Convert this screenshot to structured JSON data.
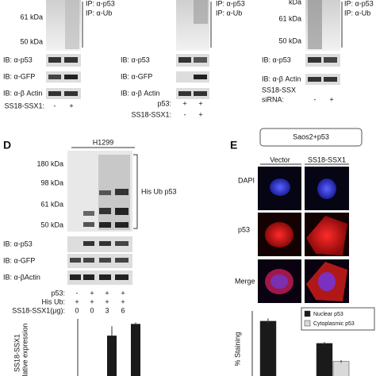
{
  "panel_a": {
    "ip_labels": [
      "IP: α-p53",
      "IP: α-Ub"
    ],
    "mw": [
      "61 kDa",
      "50 kDa"
    ],
    "ib": [
      "IB: α-p53",
      "IB: α-GFP",
      "IB: α-β Actin"
    ],
    "conditions": [
      {
        "label": "SS18-SSX1:",
        "lanes": [
          "-",
          "+"
        ]
      }
    ]
  },
  "panel_b": {
    "ip_labels": [
      "IP: α-p53",
      "IP: α-Ub"
    ],
    "ib": [
      "IB: α-p53",
      "IB: α-GFP",
      "IB: α-β Actin"
    ],
    "conditions": [
      {
        "label": "p53:",
        "lanes": [
          "+",
          "+"
        ]
      },
      {
        "label": "SS18-SSX1:",
        "lanes": [
          "-",
          "+"
        ]
      }
    ]
  },
  "panel_c": {
    "ip_labels": [
      "IP: α-p53",
      "IP: α-Ub"
    ],
    "mw": [
      "kDa",
      "61 kDa",
      "50 kDa"
    ],
    "ib": [
      "IB: α-p53",
      "IB: α-β Actin"
    ],
    "conditions": [
      {
        "label": "SS18-SSX",
        "lanes": []
      },
      {
        "label": "siRNA:",
        "lanes": [
          "-",
          "+"
        ]
      }
    ]
  },
  "panel_d": {
    "letter": "D",
    "cell_line": "H1299",
    "mw": [
      "180 kDa",
      "98 kDa",
      "61 kDa",
      "50 kDa"
    ],
    "bracket_label": "His Ub p53",
    "ib": [
      "IB: α-p53",
      "IB: α-GFP",
      "IB: α-βActin"
    ],
    "conditions": [
      {
        "label": "p53:",
        "lanes": [
          "-",
          "+",
          "+",
          "+"
        ]
      },
      {
        "label": "His Ub:",
        "lanes": [
          "+",
          "+",
          "+",
          "+"
        ]
      },
      {
        "label": "SS18-SSX1(μg):",
        "lanes": [
          "0",
          "0",
          "3",
          "6"
        ]
      }
    ],
    "chart": {
      "type": "bar",
      "y_label": [
        "SS18-SSX1",
        "relative expression"
      ],
      "color": "#1a1a1a",
      "values": [
        11,
        13.5
      ],
      "errors": [
        2,
        0.3
      ]
    }
  },
  "panel_e": {
    "letter": "E",
    "title": "Saos2+p53",
    "columns": [
      "Vector",
      "SS18-SSX1"
    ],
    "rows": [
      "DAPI",
      "p53",
      "Merge"
    ],
    "chart": {
      "type": "bar",
      "y_label": "% Staining",
      "series": [
        {
          "name": "Nuclear p53",
          "color": "#1a1a1a",
          "values": [
            95,
            63
          ],
          "errors": [
            4,
            2
          ]
        },
        {
          "name": "Cytoplasmic p53",
          "color": "#d9d9d9",
          "values": [
            null,
            37
          ],
          "errors": [
            null,
            2
          ]
        }
      ]
    }
  }
}
